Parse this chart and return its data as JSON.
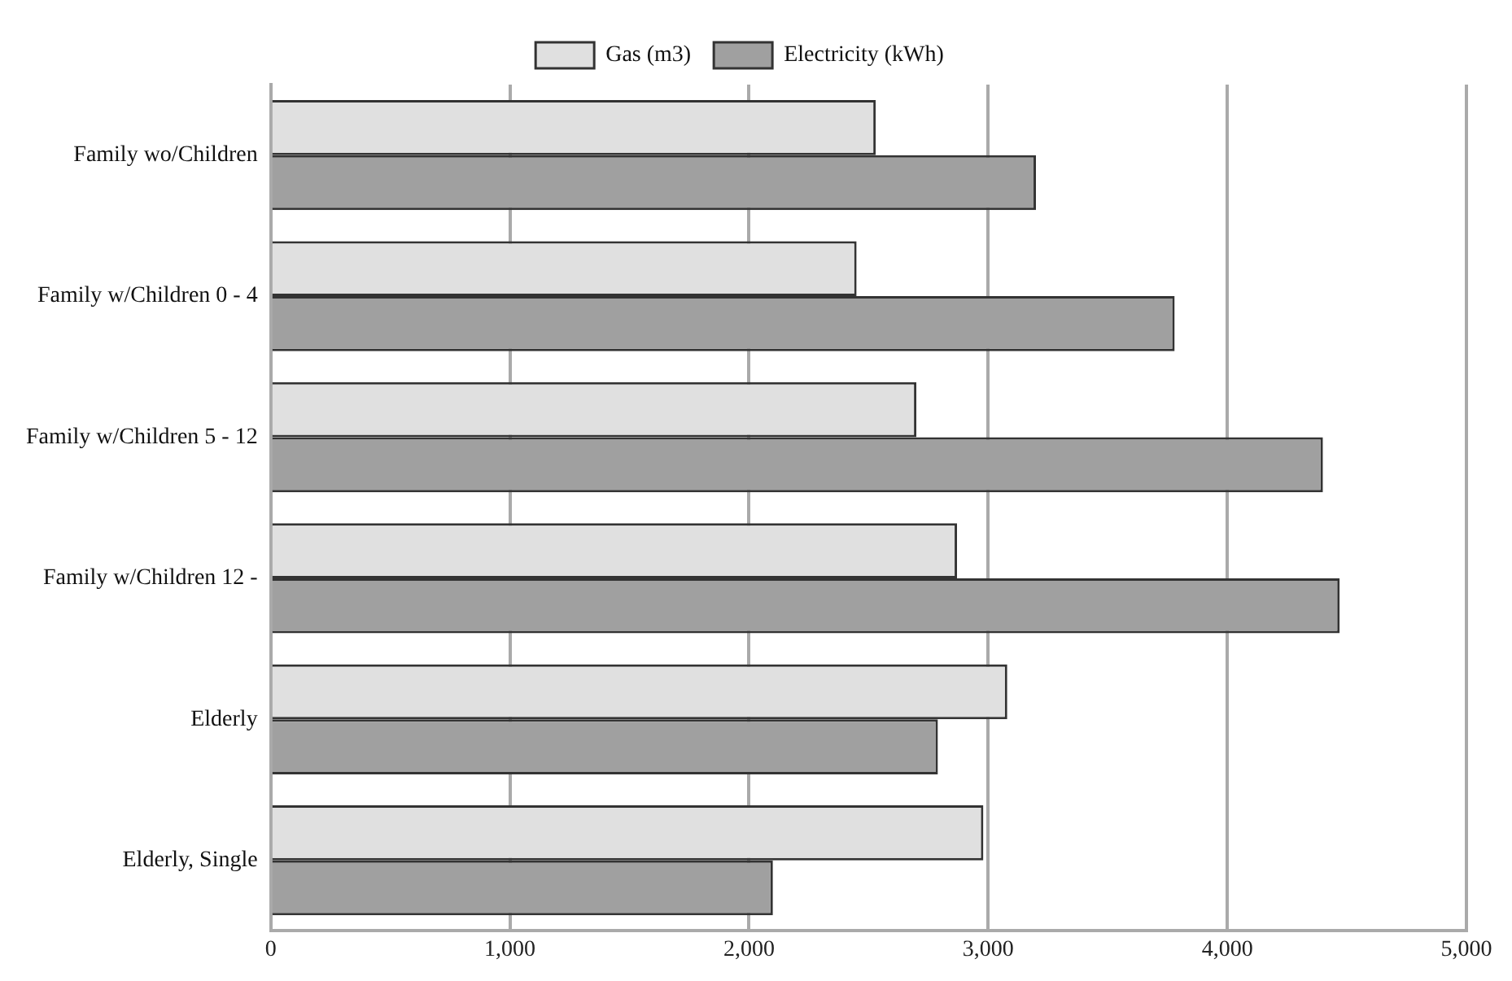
{
  "chart_data": {
    "type": "bar",
    "orientation": "horizontal",
    "categories": [
      "Family wo/Children",
      "Family w/Children 0 - 4",
      "Family w/Children 5 - 12",
      "Family w/Children 12 -",
      "Elderly",
      "Elderly, Single"
    ],
    "series": [
      {
        "name": "Gas (m3)",
        "color": "#e0e0e0",
        "values": [
          2530,
          2450,
          2700,
          2870,
          3080,
          2980
        ]
      },
      {
        "name": "Electricity (kWh)",
        "color": "#a0a0a0",
        "values": [
          3200,
          3780,
          4400,
          4470,
          2790,
          2100
        ]
      }
    ],
    "xlim": [
      0,
      5000
    ],
    "xticks": [
      {
        "value": 0,
        "label": "0"
      },
      {
        "value": 1000,
        "label": "1,000"
      },
      {
        "value": 2000,
        "label": "2,000"
      },
      {
        "value": 3000,
        "label": "3,000"
      },
      {
        "value": 4000,
        "label": "4,000"
      },
      {
        "value": 5000,
        "label": "5,000"
      }
    ],
    "grid": "x",
    "legend": "top"
  }
}
